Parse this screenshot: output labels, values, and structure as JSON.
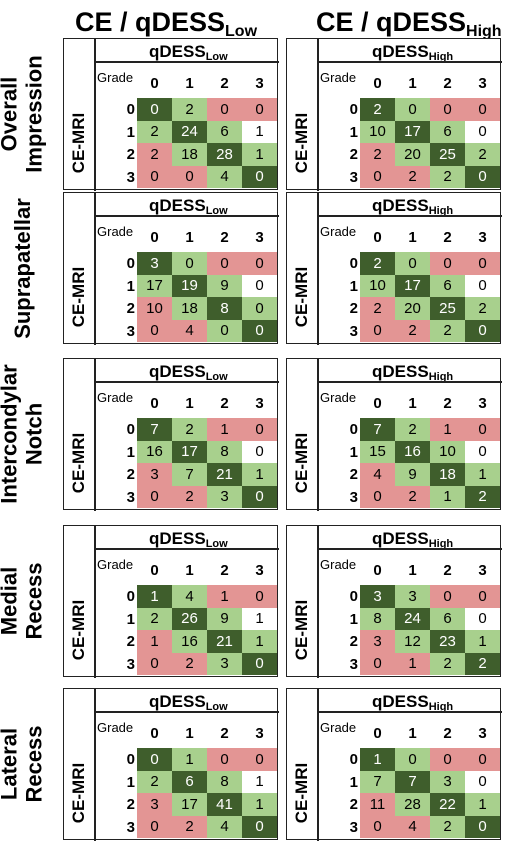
{
  "column_titles": [
    {
      "main": "CE / qDESS",
      "sub": "Low"
    },
    {
      "main": "CE / qDESS",
      "sub": "High"
    }
  ],
  "row_labels": [
    [
      "Overall",
      "Impression"
    ],
    [
      "Suprapatellar"
    ],
    [
      "Intercondylar",
      "Notch"
    ],
    [
      "Medial",
      "Recess"
    ],
    [
      "Lateral",
      "Recess"
    ]
  ],
  "panel_axis": {
    "x_main": "qDESS",
    "row_axis_label": "CE-MRI",
    "corner_label": "Grade",
    "grades": [
      "0",
      "1",
      "2",
      "3"
    ]
  },
  "colors": {
    "dark_green": "#3f5e2c",
    "light_green": "#a8d08d",
    "pale_pink": "#f4c7c5",
    "pink": "#e39594",
    "white": "#ffffff"
  },
  "chart_data": {
    "type": "table",
    "description_rows": "CE-MRI grade (rows 0-3) vs qDESS grade (columns 0-3)",
    "panels": [
      {
        "region": "Overall Impression",
        "column": "Low",
        "values": [
          [
            0,
            2,
            0,
            0
          ],
          [
            2,
            24,
            6,
            1
          ],
          [
            2,
            18,
            28,
            1
          ],
          [
            0,
            0,
            4,
            0
          ]
        ]
      },
      {
        "region": "Overall Impression",
        "column": "High",
        "values": [
          [
            2,
            0,
            0,
            0
          ],
          [
            10,
            17,
            6,
            0
          ],
          [
            2,
            20,
            25,
            2
          ],
          [
            0,
            2,
            2,
            0
          ]
        ]
      },
      {
        "region": "Suprapatellar",
        "column": "Low",
        "values": [
          [
            3,
            0,
            0,
            0
          ],
          [
            17,
            19,
            9,
            0
          ],
          [
            10,
            18,
            8,
            0
          ],
          [
            0,
            4,
            0,
            0
          ]
        ]
      },
      {
        "region": "Suprapatellar",
        "column": "High",
        "values": [
          [
            2,
            0,
            0,
            0
          ],
          [
            10,
            17,
            6,
            0
          ],
          [
            2,
            20,
            25,
            2
          ],
          [
            0,
            2,
            2,
            0
          ]
        ]
      },
      {
        "region": "Intercondylar Notch",
        "column": "Low",
        "values": [
          [
            7,
            2,
            1,
            0
          ],
          [
            16,
            17,
            8,
            0
          ],
          [
            3,
            7,
            21,
            1
          ],
          [
            0,
            2,
            3,
            0
          ]
        ]
      },
      {
        "region": "Intercondylar Notch",
        "column": "High",
        "values": [
          [
            7,
            2,
            1,
            0
          ],
          [
            15,
            16,
            10,
            0
          ],
          [
            4,
            9,
            18,
            1
          ],
          [
            0,
            2,
            1,
            2
          ]
        ]
      },
      {
        "region": "Medial Recess",
        "column": "Low",
        "values": [
          [
            1,
            4,
            1,
            0
          ],
          [
            2,
            26,
            9,
            1
          ],
          [
            1,
            16,
            21,
            1
          ],
          [
            0,
            2,
            3,
            0
          ]
        ]
      },
      {
        "region": "Medial Recess",
        "column": "High",
        "values": [
          [
            3,
            3,
            0,
            0
          ],
          [
            8,
            24,
            6,
            0
          ],
          [
            3,
            12,
            23,
            1
          ],
          [
            0,
            1,
            2,
            2
          ]
        ]
      },
      {
        "region": "Lateral Recess",
        "column": "Low",
        "values": [
          [
            0,
            1,
            0,
            0
          ],
          [
            2,
            6,
            8,
            1
          ],
          [
            3,
            17,
            41,
            1
          ],
          [
            0,
            2,
            4,
            0
          ]
        ]
      },
      {
        "region": "Lateral Recess",
        "column": "High",
        "values": [
          [
            1,
            0,
            0,
            0
          ],
          [
            7,
            7,
            3,
            0
          ],
          [
            11,
            28,
            22,
            1
          ],
          [
            0,
            4,
            2,
            0
          ]
        ]
      }
    ]
  }
}
